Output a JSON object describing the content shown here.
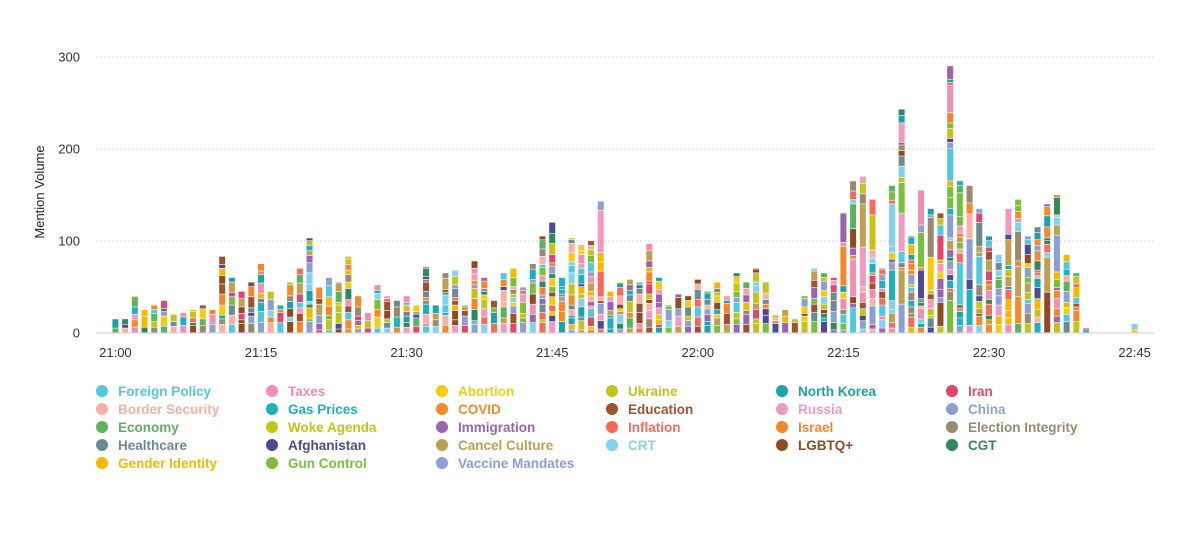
{
  "chart_data": {
    "type": "bar",
    "stacked": true,
    "ylabel": "Mention Volume",
    "ylim": [
      0,
      300
    ],
    "yticks": [
      0,
      100,
      200,
      300
    ],
    "xticks": [
      "21:00",
      "21:15",
      "21:30",
      "21:45",
      "22:00",
      "22:15",
      "22:30",
      "22:45"
    ],
    "grid": true,
    "legend_position": "bottom",
    "x_range": [
      "20:58",
      "22:47"
    ],
    "bin_minutes": 0.5,
    "series": [
      {
        "name": "Foreign Policy",
        "color": "#4ec9e0"
      },
      {
        "name": "Taxes",
        "color": "#f28eb0"
      },
      {
        "name": "Abortion",
        "color": "#f5cc0a"
      },
      {
        "name": "Ukraine",
        "color": "#c2c41a"
      },
      {
        "name": "North Korea",
        "color": "#1aa3ac"
      },
      {
        "name": "Iran",
        "color": "#e0476c"
      },
      {
        "name": "Border Security",
        "color": "#f7b0a3"
      },
      {
        "name": "Gas Prices",
        "color": "#1cb0c0"
      },
      {
        "name": "COVID",
        "color": "#f58a2a"
      },
      {
        "name": "Education",
        "color": "#a0522d"
      },
      {
        "name": "Russia",
        "color": "#f09ac0"
      },
      {
        "name": "China",
        "color": "#8da0d0"
      },
      {
        "name": "Economy",
        "color": "#5cb35c"
      },
      {
        "name": "Woke Agenda",
        "color": "#c4c418"
      },
      {
        "name": "Immigration",
        "color": "#9b64b0"
      },
      {
        "name": "Inflation",
        "color": "#f76a5a"
      },
      {
        "name": "Israel",
        "color": "#f5872a"
      },
      {
        "name": "Election Integrity",
        "color": "#988a6e"
      },
      {
        "name": "Healthcare",
        "color": "#6b8a92"
      },
      {
        "name": "Afghanistan",
        "color": "#4e4a96"
      },
      {
        "name": "Cancel Culture",
        "color": "#c0a050"
      },
      {
        "name": "CRT",
        "color": "#7fd3f0"
      },
      {
        "name": "LGBTQ+",
        "color": "#8f4a22"
      },
      {
        "name": "CGT",
        "color": "#2e8a5a"
      },
      {
        "name": "Gender Identity",
        "color": "#f5b800"
      },
      {
        "name": "Gun Control",
        "color": "#78c03a"
      },
      {
        "name": "Vaccine Mandates",
        "color": "#8c9ed8"
      }
    ],
    "totals": [
      {
        "t": "21:00",
        "v": 15
      },
      {
        "t": "21:01",
        "v": 15
      },
      {
        "t": "21:02",
        "v": 40
      },
      {
        "t": "21:03",
        "v": 25
      },
      {
        "t": "21:04",
        "v": 30
      },
      {
        "t": "21:05",
        "v": 35
      },
      {
        "t": "21:06",
        "v": 20
      },
      {
        "t": "21:07",
        "v": 22
      },
      {
        "t": "21:08",
        "v": 25
      },
      {
        "t": "21:09",
        "v": 30
      },
      {
        "t": "21:10",
        "v": 25
      },
      {
        "t": "21:11",
        "v": 83
      },
      {
        "t": "21:12",
        "v": 60
      },
      {
        "t": "21:13",
        "v": 45
      },
      {
        "t": "21:14",
        "v": 55
      },
      {
        "t": "21:15",
        "v": 75
      },
      {
        "t": "21:16",
        "v": 45
      },
      {
        "t": "21:17",
        "v": 30
      },
      {
        "t": "21:18",
        "v": 55
      },
      {
        "t": "21:19",
        "v": 70
      },
      {
        "t": "21:20",
        "v": 103
      },
      {
        "t": "21:21",
        "v": 50
      },
      {
        "t": "21:22",
        "v": 60
      },
      {
        "t": "21:23",
        "v": 55
      },
      {
        "t": "21:24",
        "v": 83
      },
      {
        "t": "21:25",
        "v": 40
      },
      {
        "t": "21:26",
        "v": 22
      },
      {
        "t": "21:27",
        "v": 52
      },
      {
        "t": "21:28",
        "v": 40
      },
      {
        "t": "21:29",
        "v": 35
      },
      {
        "t": "21:30",
        "v": 40
      },
      {
        "t": "21:31",
        "v": 30
      },
      {
        "t": "21:32",
        "v": 72
      },
      {
        "t": "21:33",
        "v": 30
      },
      {
        "t": "21:34",
        "v": 65
      },
      {
        "t": "21:35",
        "v": 68
      },
      {
        "t": "21:36",
        "v": 30
      },
      {
        "t": "21:37",
        "v": 78
      },
      {
        "t": "21:38",
        "v": 60
      },
      {
        "t": "21:39",
        "v": 35
      },
      {
        "t": "21:40",
        "v": 65
      },
      {
        "t": "21:41",
        "v": 70
      },
      {
        "t": "21:42",
        "v": 50
      },
      {
        "t": "21:43",
        "v": 75
      },
      {
        "t": "21:44",
        "v": 105
      },
      {
        "t": "21:45",
        "v": 120
      },
      {
        "t": "21:46",
        "v": 60
      },
      {
        "t": "21:47",
        "v": 103
      },
      {
        "t": "21:48",
        "v": 95
      },
      {
        "t": "21:49",
        "v": 100
      },
      {
        "t": "21:50",
        "v": 143
      },
      {
        "t": "21:51",
        "v": 45
      },
      {
        "t": "21:52",
        "v": 55
      },
      {
        "t": "21:53",
        "v": 58
      },
      {
        "t": "21:54",
        "v": 55
      },
      {
        "t": "21:55",
        "v": 97
      },
      {
        "t": "21:56",
        "v": 60
      },
      {
        "t": "21:57",
        "v": 30
      },
      {
        "t": "21:58",
        "v": 42
      },
      {
        "t": "21:59",
        "v": 40
      },
      {
        "t": "22:00",
        "v": 58
      },
      {
        "t": "22:01",
        "v": 45
      },
      {
        "t": "22:02",
        "v": 55
      },
      {
        "t": "22:03",
        "v": 40
      },
      {
        "t": "22:04",
        "v": 65
      },
      {
        "t": "22:05",
        "v": 55
      },
      {
        "t": "22:06",
        "v": 70
      },
      {
        "t": "22:07",
        "v": 55
      },
      {
        "t": "22:08",
        "v": 20
      },
      {
        "t": "22:09",
        "v": 25
      },
      {
        "t": "22:10",
        "v": 15
      },
      {
        "t": "22:11",
        "v": 40
      },
      {
        "t": "22:12",
        "v": 70
      },
      {
        "t": "22:13",
        "v": 65
      },
      {
        "t": "22:14",
        "v": 60
      },
      {
        "t": "22:15",
        "v": 130
      },
      {
        "t": "22:16",
        "v": 165
      },
      {
        "t": "22:17",
        "v": 170
      },
      {
        "t": "22:18",
        "v": 145
      },
      {
        "t": "22:19",
        "v": 70
      },
      {
        "t": "22:20",
        "v": 160
      },
      {
        "t": "22:21",
        "v": 243
      },
      {
        "t": "22:22",
        "v": 105
      },
      {
        "t": "22:23",
        "v": 155
      },
      {
        "t": "22:24",
        "v": 135
      },
      {
        "t": "22:25",
        "v": 130
      },
      {
        "t": "22:26",
        "v": 290
      },
      {
        "t": "22:27",
        "v": 165
      },
      {
        "t": "22:28",
        "v": 160
      },
      {
        "t": "22:29",
        "v": 135
      },
      {
        "t": "22:30",
        "v": 105
      },
      {
        "t": "22:31",
        "v": 85
      },
      {
        "t": "22:32",
        "v": 135
      },
      {
        "t": "22:33",
        "v": 145
      },
      {
        "t": "22:34",
        "v": 105
      },
      {
        "t": "22:35",
        "v": 115
      },
      {
        "t": "22:36",
        "v": 140
      },
      {
        "t": "22:37",
        "v": 150
      },
      {
        "t": "22:38",
        "v": 85
      },
      {
        "t": "22:39",
        "v": 65
      },
      {
        "t": "22:40",
        "v": 5
      },
      {
        "t": "22:45",
        "v": 10
      }
    ]
  }
}
